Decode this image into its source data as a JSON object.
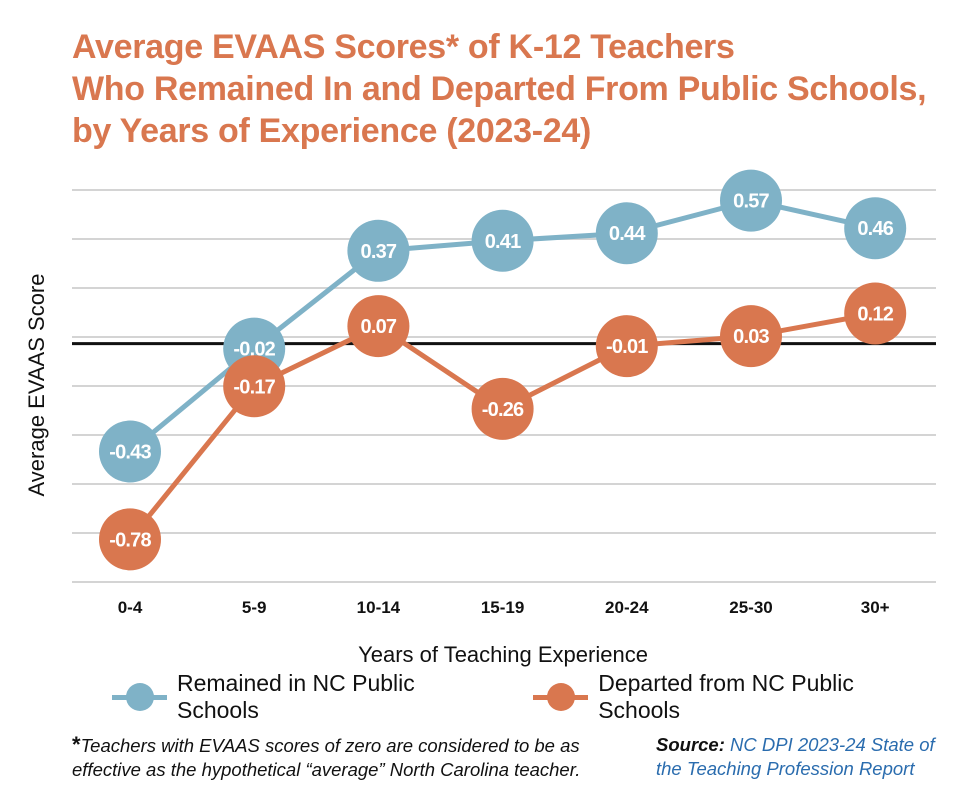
{
  "title_lines": [
    "Average EVAAS Scores* of K-12 Teachers",
    "Who Remained In and Departed From Public Schools,",
    "by Years of Experience (2023-24)"
  ],
  "colors": {
    "title": "#d9774f",
    "remained": "#7fb2c7",
    "departed": "#d9774f",
    "grid": "#d4d4d4",
    "zero_line": "#111111",
    "source_link": "#2a6cae"
  },
  "chart_data": {
    "type": "line",
    "title": "Average EVAAS Scores* of K-12 Teachers Who Remained In and Departed From Public Schools, by Years of Experience (2023-24)",
    "xlabel": "Years of Teaching Experience",
    "ylabel": "Average EVAAS Score",
    "categories": [
      "0-4",
      "5-9",
      "10-14",
      "15-19",
      "20-24",
      "25-30",
      "30+"
    ],
    "series": [
      {
        "name": "Remained in NC Public Schools",
        "values": [
          -0.43,
          -0.02,
          0.37,
          0.41,
          0.44,
          0.57,
          0.46
        ],
        "labels": [
          "-0.43",
          "-0.02",
          "0.37",
          "0.41",
          "0.44",
          "0.57",
          "0.46"
        ],
        "color": "#7fb2c7"
      },
      {
        "name": "Departed from NC Public Schools",
        "values": [
          -0.78,
          -0.17,
          0.07,
          -0.26,
          -0.01,
          0.03,
          0.12
        ],
        "labels": [
          "-0.78",
          "-0.17",
          "0.07",
          "-0.26",
          "-0.01",
          "0.03",
          "0.12"
        ],
        "color": "#d9774f"
      }
    ],
    "ylim": [
      -0.95,
      0.7
    ],
    "grid": true,
    "legend": "bottom"
  },
  "footnote": {
    "star": "*",
    "text": "Teachers with EVAAS scores of zero are considered to be as effective as the hypothetical “average” North Carolina teacher."
  },
  "source": {
    "label": "Source:",
    "text": "NC DPI 2023-24 State of the Teaching Profession Report"
  }
}
